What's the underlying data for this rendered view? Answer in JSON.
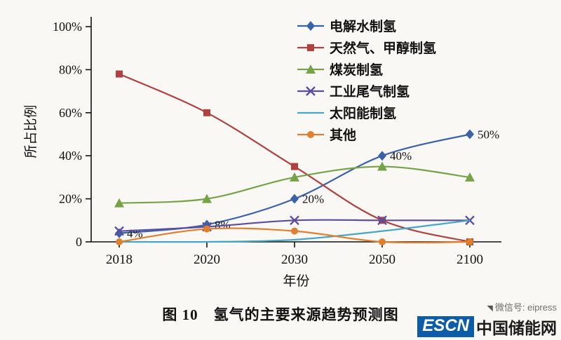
{
  "chart_data": {
    "type": "line",
    "categories": [
      "2018",
      "2020",
      "2030",
      "2050",
      "2100"
    ],
    "xlabel": "年份",
    "ylabel": "所占比例",
    "ylim": [
      0,
      100
    ],
    "y_ticks": [
      "0",
      "20%",
      "40%",
      "60%",
      "80%",
      "100%"
    ],
    "grid": false,
    "legend_position": "top-right-inside",
    "series": [
      {
        "name": "电解水制氢",
        "color": "#3a62a8",
        "marker": "diamond",
        "values": [
          4,
          8,
          20,
          40,
          50
        ],
        "point_labels": [
          "4%",
          "8%",
          "20%",
          "40%",
          "50%"
        ]
      },
      {
        "name": "天然气、甲醇制氢",
        "color": "#b0413e",
        "marker": "square",
        "values": [
          78,
          60,
          35,
          10,
          0
        ]
      },
      {
        "name": "煤炭制氢",
        "color": "#76a347",
        "marker": "triangle",
        "values": [
          18,
          20,
          30,
          35,
          30
        ]
      },
      {
        "name": "工业尾气制氢",
        "color": "#5c4e9e",
        "marker": "x",
        "values": [
          5,
          7,
          10,
          10,
          10
        ]
      },
      {
        "name": "太阳能制氢",
        "color": "#45a6c6",
        "marker": "none",
        "values": [
          0,
          0,
          1,
          5,
          10
        ]
      },
      {
        "name": "其他",
        "color": "#e07f2d",
        "marker": "circle",
        "values": [
          0,
          6,
          5,
          0,
          0
        ]
      }
    ]
  },
  "caption": {
    "text": "图 10　氢气的主要来源趋势预测图"
  },
  "watermark": {
    "wechat_label": "微信号: eipress",
    "logo_text": "ESCN",
    "logo_suffix": "中国储能网",
    "logo_color": "#0d5ca8"
  }
}
